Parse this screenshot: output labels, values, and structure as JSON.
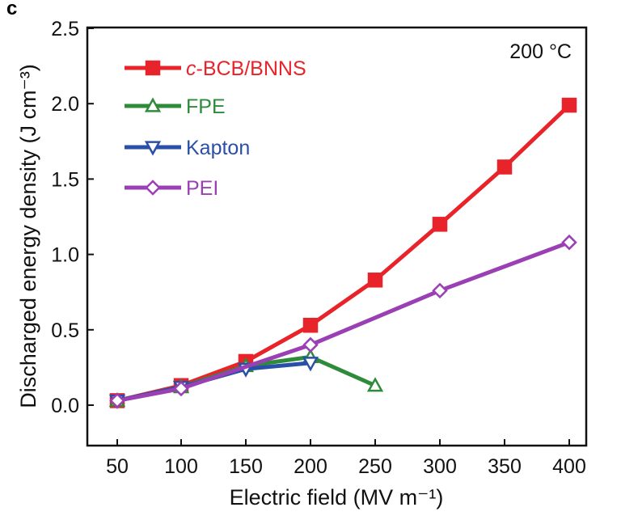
{
  "panel_label": "c",
  "chart_data": {
    "type": "line",
    "title": "",
    "annotation": "200 °C",
    "xlabel": "Electric field (MV m⁻¹)",
    "ylabel": "Discharged energy density (J cm⁻³)",
    "x_ticks": [
      "50",
      "100",
      "150",
      "200",
      "250",
      "300",
      "350",
      "400"
    ],
    "y_ticks": [
      0.0,
      0.5,
      1.0,
      1.5,
      2.0,
      2.5
    ],
    "y_tick_labels": [
      "0.0",
      "0.5",
      "1.0",
      "1.5",
      "2.0",
      "2.5"
    ],
    "ylim": [
      -0.27,
      2.5
    ],
    "series": [
      {
        "name": "c-BCB/BNNS",
        "name_italic_prefix": "c",
        "name_rest": "-BCB/BNNS",
        "color": "#e8232a",
        "marker": "square-filled",
        "x": [
          50,
          100,
          150,
          200,
          250,
          300,
          350,
          400
        ],
        "y": [
          0.03,
          0.13,
          0.29,
          0.53,
          0.83,
          1.2,
          1.58,
          1.99
        ]
      },
      {
        "name": "FPE",
        "color": "#2e8b3a",
        "marker": "triangle-up-open",
        "x": [
          50,
          100,
          150,
          200,
          250
        ],
        "y": [
          0.03,
          0.12,
          0.26,
          0.32,
          0.13
        ]
      },
      {
        "name": "Kapton",
        "color": "#2a4fa8",
        "marker": "triangle-down-open",
        "x": [
          50,
          100,
          150,
          200
        ],
        "y": [
          0.03,
          0.12,
          0.24,
          0.28
        ]
      },
      {
        "name": "PEI",
        "color": "#9b3fb5",
        "marker": "diamond-open",
        "x": [
          50,
          100,
          200,
          300,
          400
        ],
        "y": [
          0.03,
          0.11,
          0.4,
          0.76,
          1.08
        ]
      }
    ]
  }
}
